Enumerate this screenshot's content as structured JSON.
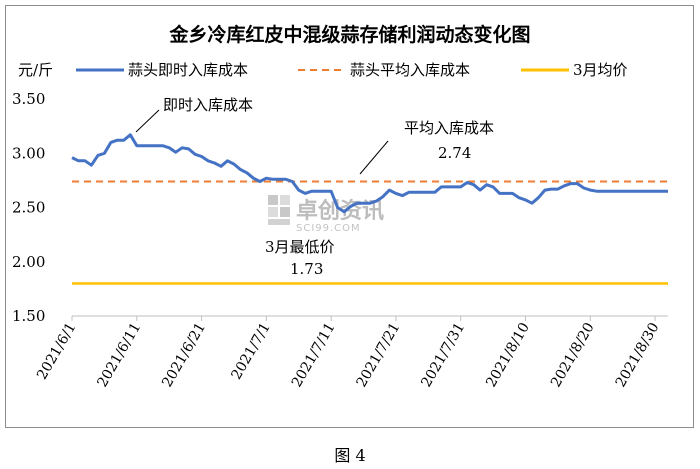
{
  "caption": "图 4",
  "chart_data": {
    "type": "line",
    "title": "金乡冷库红皮中混级蒜存储利润动态变化图",
    "ylabel": "元/斤",
    "ylim": [
      1.5,
      3.5
    ],
    "yticks": [
      "1.50",
      "2.00",
      "2.50",
      "3.00",
      "3.50"
    ],
    "ytick_values": [
      1.5,
      2.0,
      2.5,
      3.0,
      3.5
    ],
    "x_start": "2021/6/1",
    "x_end": "2021/9/1",
    "xticks": [
      "2021/6/1",
      "2021/6/11",
      "2021/6/21",
      "2021/7/1",
      "2021/7/11",
      "2021/7/21",
      "2021/7/31",
      "2021/8/10",
      "2021/8/20",
      "2021/8/30"
    ],
    "grid": false,
    "legend_position": "top",
    "series": [
      {
        "name": "蒜头即时入库成本",
        "style": "solid",
        "color": "#4472C4",
        "x": [
          "2021/6/1",
          "2021/6/2",
          "2021/6/3",
          "2021/6/4",
          "2021/6/5",
          "2021/6/6",
          "2021/6/7",
          "2021/6/8",
          "2021/6/9",
          "2021/6/10",
          "2021/6/11",
          "2021/6/12",
          "2021/6/13",
          "2021/6/14",
          "2021/6/15",
          "2021/6/16",
          "2021/6/17",
          "2021/6/18",
          "2021/6/19",
          "2021/6/20",
          "2021/6/21",
          "2021/6/22",
          "2021/6/23",
          "2021/6/24",
          "2021/6/25",
          "2021/6/26",
          "2021/6/27",
          "2021/6/28",
          "2021/6/29",
          "2021/6/30",
          "2021/7/1",
          "2021/7/2",
          "2021/7/3",
          "2021/7/4",
          "2021/7/5",
          "2021/7/6",
          "2021/7/7",
          "2021/7/8",
          "2021/7/9",
          "2021/7/10",
          "2021/7/11",
          "2021/7/12",
          "2021/7/13",
          "2021/7/14",
          "2021/7/15",
          "2021/7/16",
          "2021/7/17",
          "2021/7/18",
          "2021/7/19",
          "2021/7/20",
          "2021/7/21",
          "2021/7/22",
          "2021/7/23",
          "2021/7/24",
          "2021/7/25",
          "2021/7/26",
          "2021/7/27",
          "2021/7/28",
          "2021/7/29",
          "2021/7/30",
          "2021/7/31",
          "2021/8/1",
          "2021/8/2",
          "2021/8/3",
          "2021/8/4",
          "2021/8/5",
          "2021/8/6",
          "2021/8/7",
          "2021/8/8",
          "2021/8/9",
          "2021/8/10",
          "2021/8/11",
          "2021/8/12",
          "2021/8/13",
          "2021/8/14",
          "2021/8/15",
          "2021/8/16",
          "2021/8/17",
          "2021/8/18",
          "2021/8/19",
          "2021/8/20",
          "2021/8/21",
          "2021/8/22",
          "2021/8/23",
          "2021/8/24",
          "2021/8/25",
          "2021/8/26",
          "2021/8/27",
          "2021/8/28",
          "2021/8/29",
          "2021/8/30",
          "2021/8/31",
          "2021/9/1"
        ],
        "values": [
          2.96,
          2.93,
          2.93,
          2.89,
          2.98,
          3.0,
          3.1,
          3.12,
          3.12,
          3.17,
          3.07,
          3.07,
          3.07,
          3.07,
          3.07,
          3.05,
          3.01,
          3.05,
          3.04,
          2.99,
          2.97,
          2.93,
          2.91,
          2.88,
          2.93,
          2.9,
          2.85,
          2.82,
          2.77,
          2.74,
          2.77,
          2.76,
          2.76,
          2.76,
          2.74,
          2.66,
          2.63,
          2.65,
          2.65,
          2.65,
          2.65,
          2.5,
          2.46,
          2.51,
          2.54,
          2.54,
          2.54,
          2.56,
          2.6,
          2.66,
          2.63,
          2.61,
          2.64,
          2.64,
          2.64,
          2.64,
          2.64,
          2.69,
          2.69,
          2.69,
          2.69,
          2.73,
          2.71,
          2.66,
          2.71,
          2.69,
          2.63,
          2.63,
          2.63,
          2.59,
          2.57,
          2.54,
          2.59,
          2.66,
          2.67,
          2.67,
          2.7,
          2.72,
          2.72,
          2.68,
          2.66,
          2.65,
          2.65,
          2.65,
          2.65,
          2.65,
          2.65,
          2.65,
          2.65,
          2.65,
          2.65,
          2.65,
          2.65
        ]
      },
      {
        "name": "蒜头平均入库成本",
        "style": "dashed",
        "color": "#ED7D31",
        "constant": 2.74
      },
      {
        "name": "3月均价",
        "style": "solid",
        "color": "#FFC000",
        "constant": 1.8
      }
    ],
    "annotations": [
      {
        "text": "即时入库成本",
        "target": "2021/6/10",
        "value": 3.17
      },
      {
        "text": "平均入库成本",
        "value_text": "2.74",
        "target": "2021/7/15",
        "value": 2.74
      },
      {
        "text": "3月最低价",
        "value_text": "1.73"
      }
    ],
    "watermark": {
      "text_cn": "卓创资讯",
      "text_en": "SCI99.COM"
    }
  }
}
